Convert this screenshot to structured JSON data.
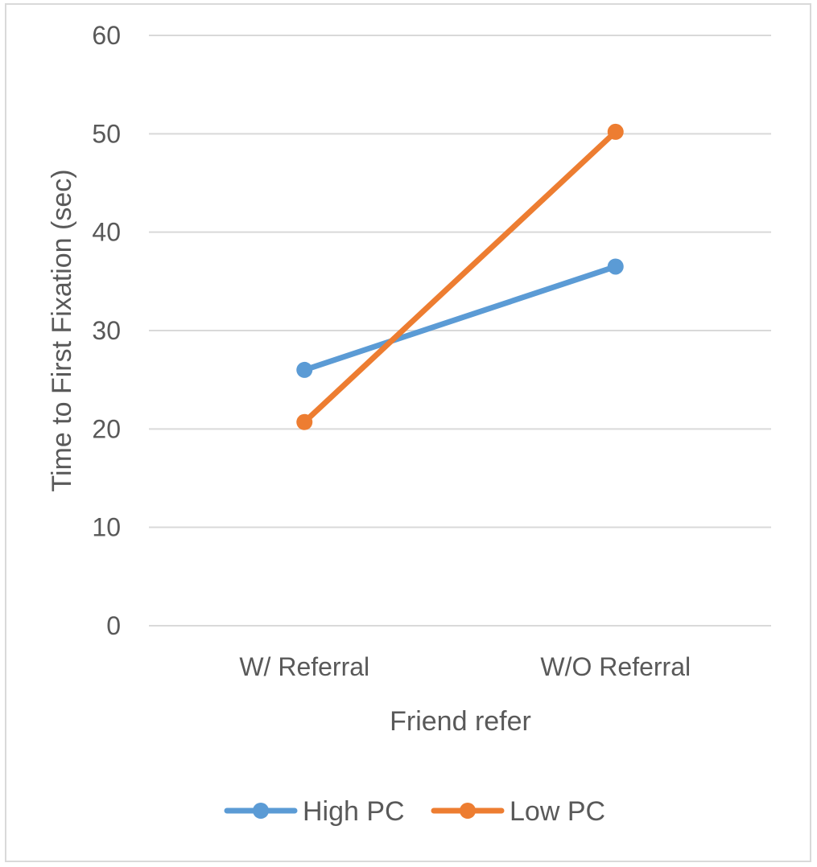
{
  "chart_data": {
    "type": "line",
    "title": "",
    "xlabel": "Friend refer",
    "ylabel": "Time to First Fixation (sec)",
    "categories": [
      "W/ Referral",
      "W/O Referral"
    ],
    "ylim": [
      0,
      60
    ],
    "yticks": [
      0,
      10,
      20,
      30,
      40,
      50,
      60
    ],
    "grid": "horizontal",
    "legend_position": "bottom",
    "series": [
      {
        "name": "High PC",
        "values": [
          26,
          36.5
        ],
        "color": "#5b9bd5"
      },
      {
        "name": "Low PC",
        "values": [
          20.7,
          50.2
        ],
        "color": "#ed7d31"
      }
    ]
  }
}
